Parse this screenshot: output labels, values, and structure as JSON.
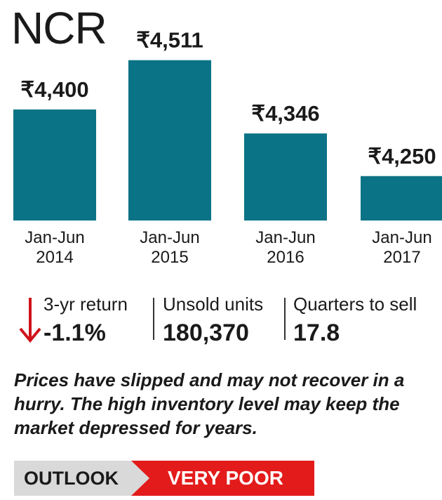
{
  "chart_data": {
    "type": "bar",
    "title": "NCR",
    "categories": [
      [
        "Jan-Jun",
        "2014"
      ],
      [
        "Jan-Jun",
        "2015"
      ],
      [
        "Jan-Jun",
        "2016"
      ],
      [
        "Jan-Jun",
        "2017"
      ]
    ],
    "values": [
      4400,
      4511,
      4346,
      4250
    ],
    "value_labels": [
      "₹4,400",
      "₹4,511",
      "₹4,346",
      "₹4,250"
    ],
    "ylim": [
      4150,
      4520
    ],
    "bar_color": "#0b7386"
  },
  "stats": {
    "return_label": "3-yr return",
    "return_value": "-1.1%",
    "unsold_label": "Unsold units",
    "unsold_value": "180,370",
    "quarters_label": "Quarters to sell",
    "quarters_value": "17.8"
  },
  "note": "Prices have slipped and may not recover in a hurry. The high inventory level may keep the market depressed for years.",
  "outlook": {
    "label": "OUTLOOK",
    "value": "VERY POOR"
  },
  "colors": {
    "accent_red": "#e31b1b",
    "arrow_red": "#d0121b",
    "outlook_gray": "#d9d9d9"
  }
}
